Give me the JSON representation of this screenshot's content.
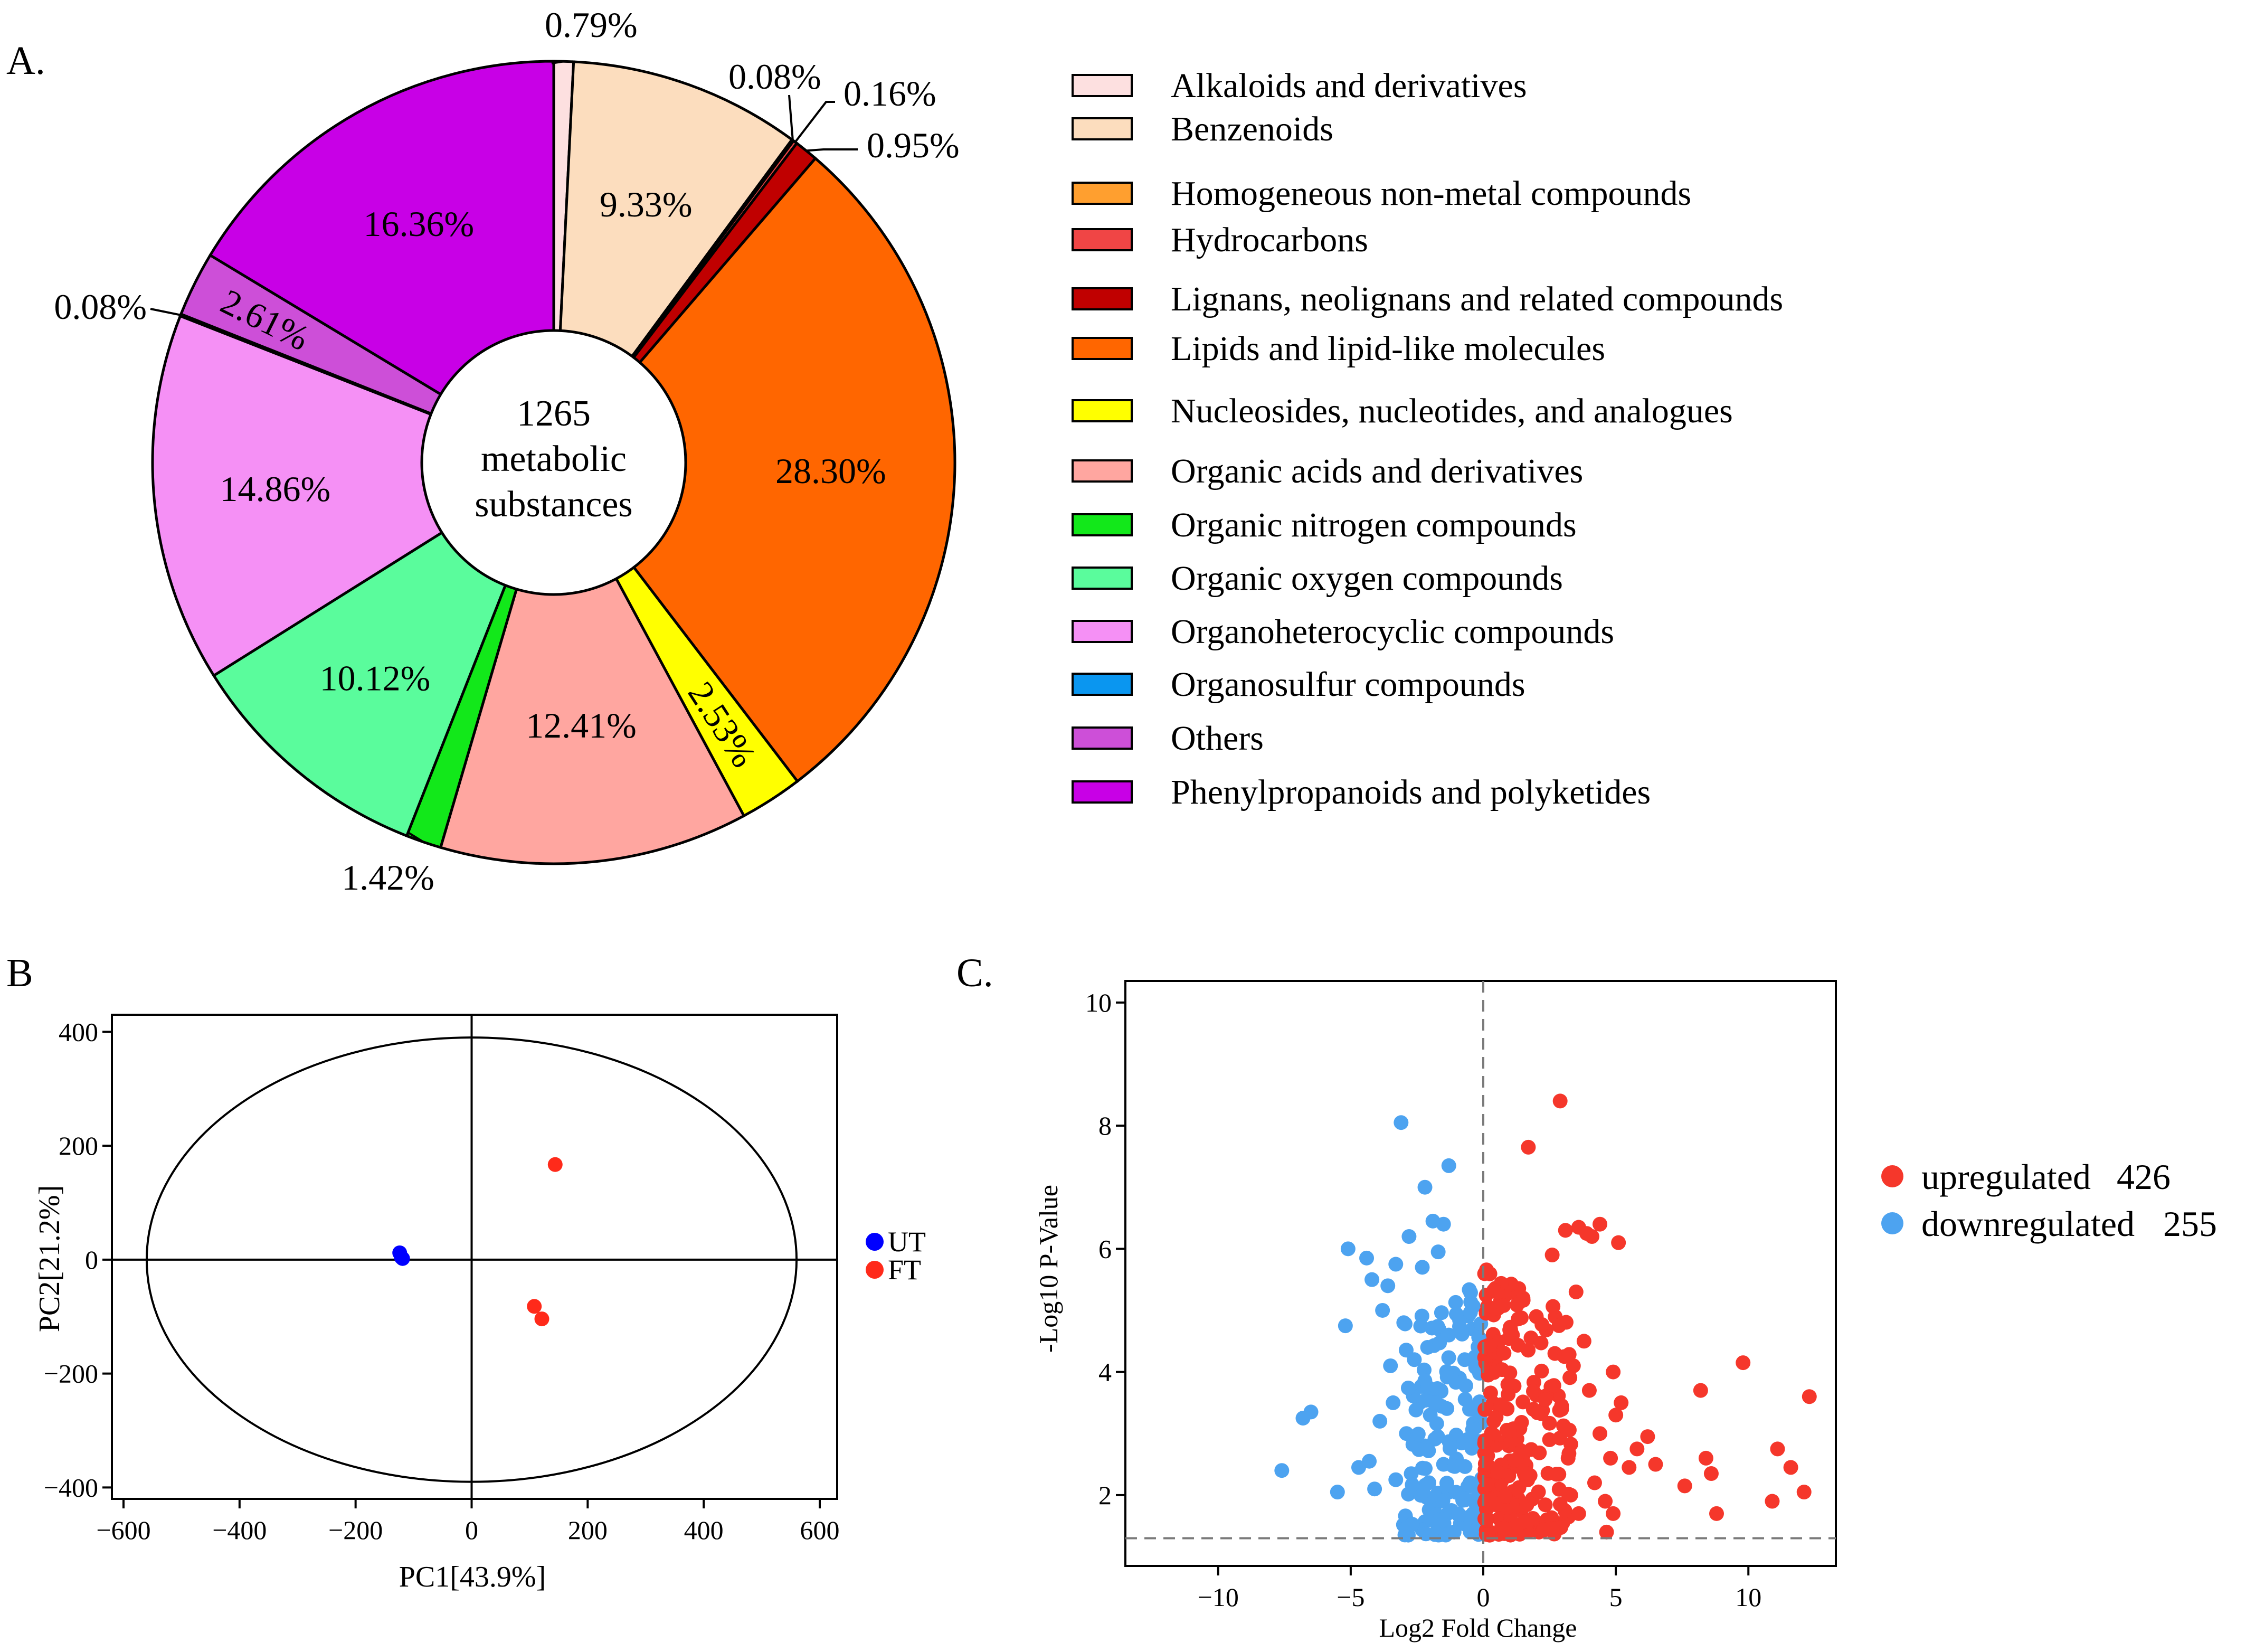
{
  "chart_data": [
    {
      "panel": "A.",
      "type": "pie",
      "center_label": [
        "1265",
        "metabolic",
        "substances"
      ],
      "slices": [
        {
          "label": "Alkaloids and derivatives",
          "value": 0.79,
          "text": "0.79%",
          "color": "#FDE0E0"
        },
        {
          "label": "Benzenoids",
          "value": 9.33,
          "text": "9.33%",
          "color": "#FCDDBE"
        },
        {
          "label": "Homogeneous non-metal compounds",
          "value": 0.08,
          "text": "0.08%",
          "color": "#FF9F2F"
        },
        {
          "label": "Hydrocarbons",
          "value": 0.16,
          "text": "0.16%",
          "color": "#F04545"
        },
        {
          "label": "Lignans, neolignans and related compounds",
          "value": 0.95,
          "text": "0.95%",
          "color": "#C00000"
        },
        {
          "label": "Lipids and lipid-like molecules",
          "value": 28.3,
          "text": "28.30%",
          "color": "#FF6600"
        },
        {
          "label": "Nucleosides, nucleotides, and analogues",
          "value": 2.53,
          "text": "2.53%",
          "color": "#FFFF00"
        },
        {
          "label": "Organic acids and derivatives",
          "value": 12.41,
          "text": "12.41%",
          "color": "#FFA6A0"
        },
        {
          "label": "Organic nitrogen compounds",
          "value": 1.42,
          "text": "1.42%",
          "color": "#12E81A"
        },
        {
          "label": "Organic oxygen compounds",
          "value": 10.12,
          "text": "10.12%",
          "color": "#5AFC9C"
        },
        {
          "label": "Organoheterocyclic compounds",
          "value": 14.86,
          "text": "14.86%",
          "color": "#F590F5"
        },
        {
          "label": "Organosulfur compounds",
          "value": 0.08,
          "text": "0.08%",
          "color": "#0A96F0"
        },
        {
          "label": "Others",
          "value": 2.61,
          "text": "2.61%",
          "color": "#CD4FD8"
        },
        {
          "label": "Phenylpropanoids and polyketides",
          "value": 16.36,
          "text": "16.36%",
          "color": "#C800E6"
        }
      ]
    },
    {
      "panel": "B",
      "type": "scatter",
      "xlabel": "PC1[43.9%]",
      "ylabel": "PC2[21.2%]",
      "xlim": [
        -620,
        630
      ],
      "ylim": [
        -420,
        430
      ],
      "xticks": [
        -600,
        -400,
        -200,
        0,
        200,
        400,
        600
      ],
      "yticks": [
        -400,
        -200,
        0,
        200,
        400
      ],
      "xtick_labels": [
        "−600",
        "−400",
        "−200",
        "0",
        "200",
        "400",
        "600"
      ],
      "ytick_labels": [
        "−400",
        "−200",
        "0",
        "200",
        "400"
      ],
      "ellipse": {
        "rx": 560,
        "ry": 390
      },
      "series": [
        {
          "name": "UT",
          "color": "#0000FF",
          "points": [
            [
              -124,
              12
            ],
            [
              -121,
              4
            ],
            [
              -119,
              2
            ]
          ]
        },
        {
          "name": "FT",
          "color": "#FF2A1A",
          "points": [
            [
              144,
              167
            ],
            [
              108,
              -82
            ],
            [
              121,
              -104
            ]
          ]
        }
      ]
    },
    {
      "panel": "C.",
      "type": "scatter",
      "xlabel": "Log2 Fold Change",
      "ylabel": "-Log10 P-Value",
      "xlim": [
        -13.5,
        13.3
      ],
      "ylim": [
        0.85,
        10.35
      ],
      "xticks": [
        -10,
        -5,
        0,
        5,
        10
      ],
      "yticks": [
        2,
        4,
        6,
        8,
        10
      ],
      "xtick_labels": [
        "−10",
        "−5",
        "0",
        "5",
        "10"
      ],
      "ytick_labels": [
        "2",
        "4",
        "6",
        "8",
        "10"
      ],
      "vline": 0,
      "hline": 1.3,
      "series": [
        {
          "name": "upregulated",
          "count": 426,
          "color": "#F5372B",
          "points": [
            [
              2.9,
              8.4
            ],
            [
              1.7,
              7.65
            ],
            [
              3.6,
              6.35
            ],
            [
              4.4,
              6.4
            ],
            [
              5.1,
              6.1
            ],
            [
              3.9,
              6.25
            ],
            [
              4.1,
              6.2
            ],
            [
              2.6,
              5.9
            ],
            [
              3.1,
              6.3
            ],
            [
              11.1,
              2.75
            ],
            [
              11.6,
              2.45
            ],
            [
              9.8,
              4.15
            ],
            [
              12.3,
              3.6
            ],
            [
              12.1,
              2.05
            ],
            [
              10.9,
              1.9
            ],
            [
              8.8,
              1.7
            ],
            [
              8.2,
              3.7
            ],
            [
              8.4,
              2.6
            ],
            [
              8.6,
              2.35
            ],
            [
              7.6,
              2.15
            ],
            [
              6.5,
              2.5
            ],
            [
              6.2,
              2.95
            ],
            [
              5.8,
              2.75
            ],
            [
              5.5,
              2.45
            ],
            [
              5.2,
              3.5
            ],
            [
              5.0,
              3.3
            ],
            [
              4.8,
              2.6
            ],
            [
              4.6,
              1.9
            ],
            [
              4.9,
              1.7
            ],
            [
              4.65,
              1.4
            ],
            [
              4.4,
              3.0
            ],
            [
              4.2,
              2.2
            ],
            [
              4.0,
              3.7
            ],
            [
              3.8,
              4.5
            ],
            [
              3.5,
              5.3
            ],
            [
              3.3,
              2.0
            ],
            [
              3.6,
              1.7
            ],
            [
              4.9,
              4.0
            ],
            [
              2.1,
              1.4
            ],
            [
              1.3,
              1.45
            ],
            [
              0.7,
              1.5
            ],
            [
              2.4,
              1.6
            ],
            [
              3.0,
              1.55
            ],
            [
              1.9,
              1.55
            ],
            [
              0.6,
              2.35
            ],
            [
              0.4,
              3.2
            ],
            [
              0.9,
              3.4
            ],
            [
              2.7,
              4.3
            ],
            [
              3.2,
              2.6
            ],
            [
              2.5,
              2.9
            ],
            [
              1.5,
              5.2
            ],
            [
              2.0,
              4.9
            ],
            [
              3.4,
              4.1
            ],
            [
              1.1,
              4.6
            ]
          ]
        },
        {
          "name": "downregulated",
          "count": 255,
          "color": "#4DA3F0",
          "points": [
            [
              -3.1,
              8.05
            ],
            [
              -1.3,
              7.35
            ],
            [
              -2.2,
              7.0
            ],
            [
              -1.5,
              6.4
            ],
            [
              -1.9,
              6.45
            ],
            [
              -2.8,
              6.2
            ],
            [
              -3.3,
              5.75
            ],
            [
              -5.1,
              6.0
            ],
            [
              -4.4,
              5.85
            ],
            [
              -3.6,
              5.4
            ],
            [
              -2.3,
              5.7
            ],
            [
              -1.7,
              5.95
            ],
            [
              -3.8,
              5.0
            ],
            [
              -4.2,
              5.5
            ],
            [
              -5.2,
              4.75
            ],
            [
              -3.0,
              4.8
            ],
            [
              -2.6,
              4.2
            ],
            [
              -2.1,
              4.4
            ],
            [
              -3.5,
              4.1
            ],
            [
              -1.6,
              3.7
            ],
            [
              -2.4,
              3.5
            ],
            [
              -6.5,
              3.35
            ],
            [
              -6.8,
              3.25
            ],
            [
              -3.4,
              3.5
            ],
            [
              -3.9,
              3.2
            ],
            [
              -2.9,
              3.0
            ],
            [
              -2.2,
              2.8
            ],
            [
              -1.5,
              2.5
            ],
            [
              -7.6,
              2.4
            ],
            [
              -4.7,
              2.45
            ],
            [
              -5.5,
              2.05
            ],
            [
              -4.3,
              2.55
            ],
            [
              -3.3,
              2.25
            ],
            [
              -2.6,
              2.1
            ],
            [
              -1.8,
              1.85
            ],
            [
              -2.9,
              1.6
            ],
            [
              -1.1,
              1.4
            ],
            [
              -0.6,
              1.55
            ],
            [
              -1.2,
              1.75
            ],
            [
              -0.5,
              2.2
            ],
            [
              -0.3,
              3.1
            ],
            [
              -0.9,
              3.9
            ],
            [
              -1.3,
              4.6
            ],
            [
              -0.7,
              4.2
            ],
            [
              -2.0,
              3.3
            ],
            [
              -1.0,
              2.9
            ],
            [
              -0.4,
              4.7
            ],
            [
              -4.1,
              2.1
            ]
          ]
        }
      ]
    }
  ]
}
